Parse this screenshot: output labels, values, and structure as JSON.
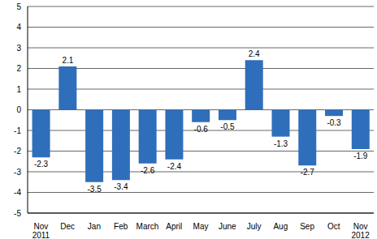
{
  "chart_data": {
    "type": "bar",
    "categories": [
      "Nov 2011",
      "Dec",
      "Jan",
      "Feb",
      "March",
      "April",
      "May",
      "June",
      "July",
      "Aug",
      "Sep",
      "Oct",
      "Nov 2012"
    ],
    "values": [
      -2.3,
      2.1,
      -3.5,
      -3.4,
      -2.6,
      -2.4,
      -0.6,
      -0.5,
      2.4,
      -1.3,
      -2.7,
      -0.3,
      -1.9
    ],
    "color": "#2f6eba",
    "ylim": [
      -5,
      5
    ],
    "yticks": [
      -5,
      -4,
      -3,
      -2,
      -1,
      0,
      1,
      2,
      3,
      4,
      5
    ],
    "grid": true,
    "data_labels": true
  }
}
